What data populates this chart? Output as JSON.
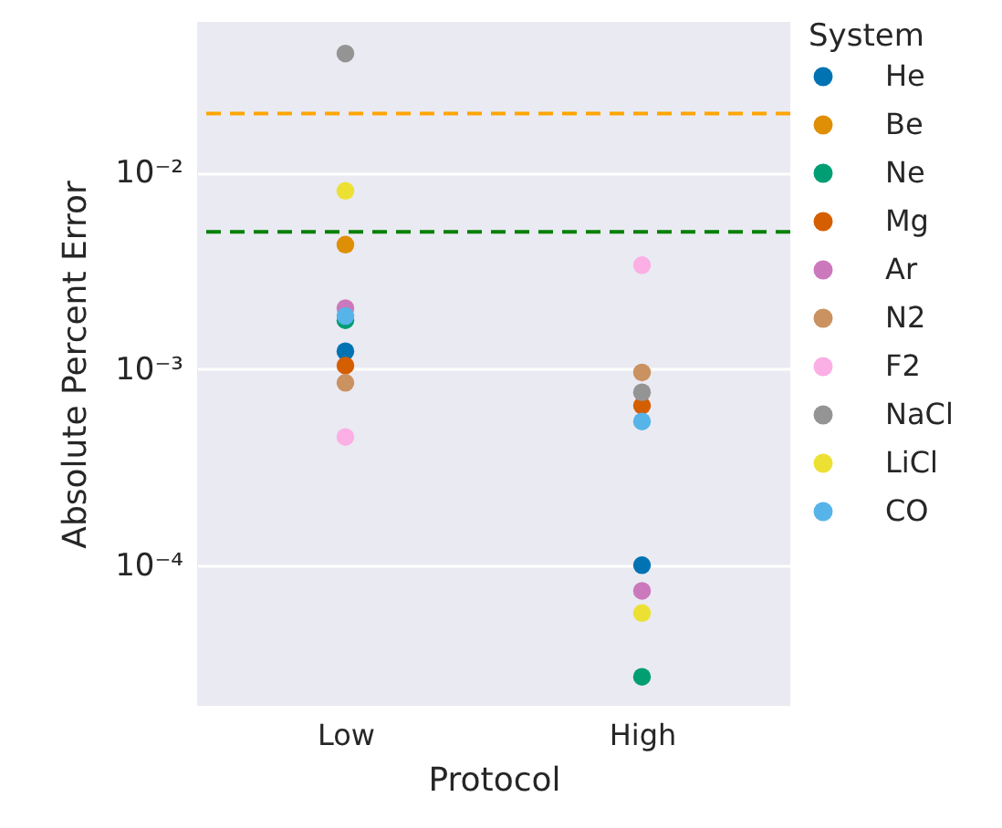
{
  "chart_data": {
    "type": "scatter",
    "xlabel": "Protocol",
    "ylabel": "Absolute Percent Error",
    "legend_title": "System",
    "categories": [
      "Low",
      "High"
    ],
    "series": [
      {
        "name": "He",
        "color": "#0173b2",
        "values": [
          0.00123,
          0.0001
        ]
      },
      {
        "name": "Be",
        "color": "#de8f05",
        "values": [
          0.0043,
          null
        ]
      },
      {
        "name": "Ne",
        "color": "#029e73",
        "values": [
          0.00177,
          2.7e-05
        ]
      },
      {
        "name": "Mg",
        "color": "#d55e00",
        "values": [
          0.00104,
          0.00065
        ]
      },
      {
        "name": "Ar",
        "color": "#cc78bc",
        "values": [
          0.00204,
          7.4e-05
        ]
      },
      {
        "name": "N2",
        "color": "#ca9161",
        "values": [
          0.00085,
          0.00096
        ]
      },
      {
        "name": "F2",
        "color": "#fbafe4",
        "values": [
          0.00045,
          0.00338
        ]
      },
      {
        "name": "NaCl",
        "color": "#949494",
        "values": [
          0.0405,
          0.00076
        ]
      },
      {
        "name": "LiCl",
        "color": "#ece133",
        "values": [
          0.00808,
          5.7e-05
        ]
      },
      {
        "name": "CO",
        "color": "#56b4e9",
        "values": [
          0.00186,
          0.00054
        ]
      }
    ],
    "log": "y",
    "ylim": [
      1.92e-05,
      0.0587
    ],
    "yticks": [
      {
        "value": 0.0001,
        "label": "10⁻⁴"
      },
      {
        "value": 0.001,
        "label": "10⁻³"
      },
      {
        "value": 0.01,
        "label": "10⁻²"
      }
    ],
    "ref_lines": [
      {
        "axis": "y",
        "value": 0.02,
        "color": "#ffa500",
        "line_style": "dashed"
      },
      {
        "axis": "y",
        "value": 0.005,
        "color": "#008000",
        "line_style": "dashed"
      }
    ],
    "grid": "y",
    "legend": "right",
    "marker": "circle"
  }
}
